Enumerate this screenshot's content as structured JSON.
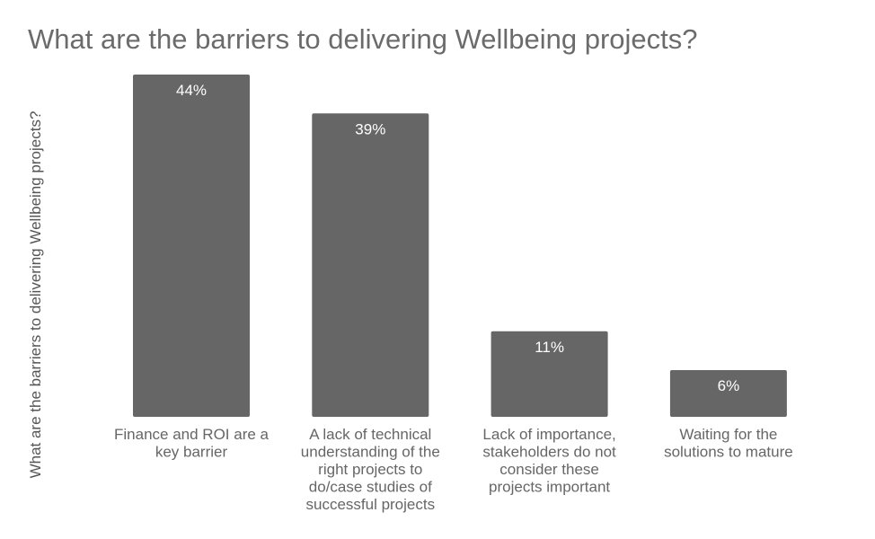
{
  "chart_data": {
    "type": "bar",
    "title": "What are the barriers to delivering Wellbeing projects?",
    "xlabel": "",
    "ylabel": "What are the barriers to delivering Wellbeing projects?",
    "categories": [
      "Finance and ROI are a key barrier",
      "A lack of technical understanding of the right projects to do/case studies of successful projects",
      "Lack of importance, stakeholders do not consider these projects important",
      "Waiting for the solutions to mature"
    ],
    "category_lines": [
      [
        "Finance and ROI are a",
        "key barrier"
      ],
      [
        "A lack of technical",
        "understanding of the",
        "right projects to",
        "do/case studies of",
        "successful projects"
      ],
      [
        "Lack of importance,",
        "stakeholders do not",
        "consider these",
        "projects important"
      ],
      [
        "Waiting for the",
        "solutions to mature"
      ]
    ],
    "values": [
      44,
      39,
      11,
      6
    ],
    "data_labels": [
      "44%",
      "39%",
      "11%",
      "6%"
    ],
    "unit": "%",
    "ylim": [
      0,
      44
    ],
    "grid": false,
    "legend": "none",
    "bar_color": "#666666",
    "label_color": "#ffffff",
    "tick_color": "#666666"
  }
}
